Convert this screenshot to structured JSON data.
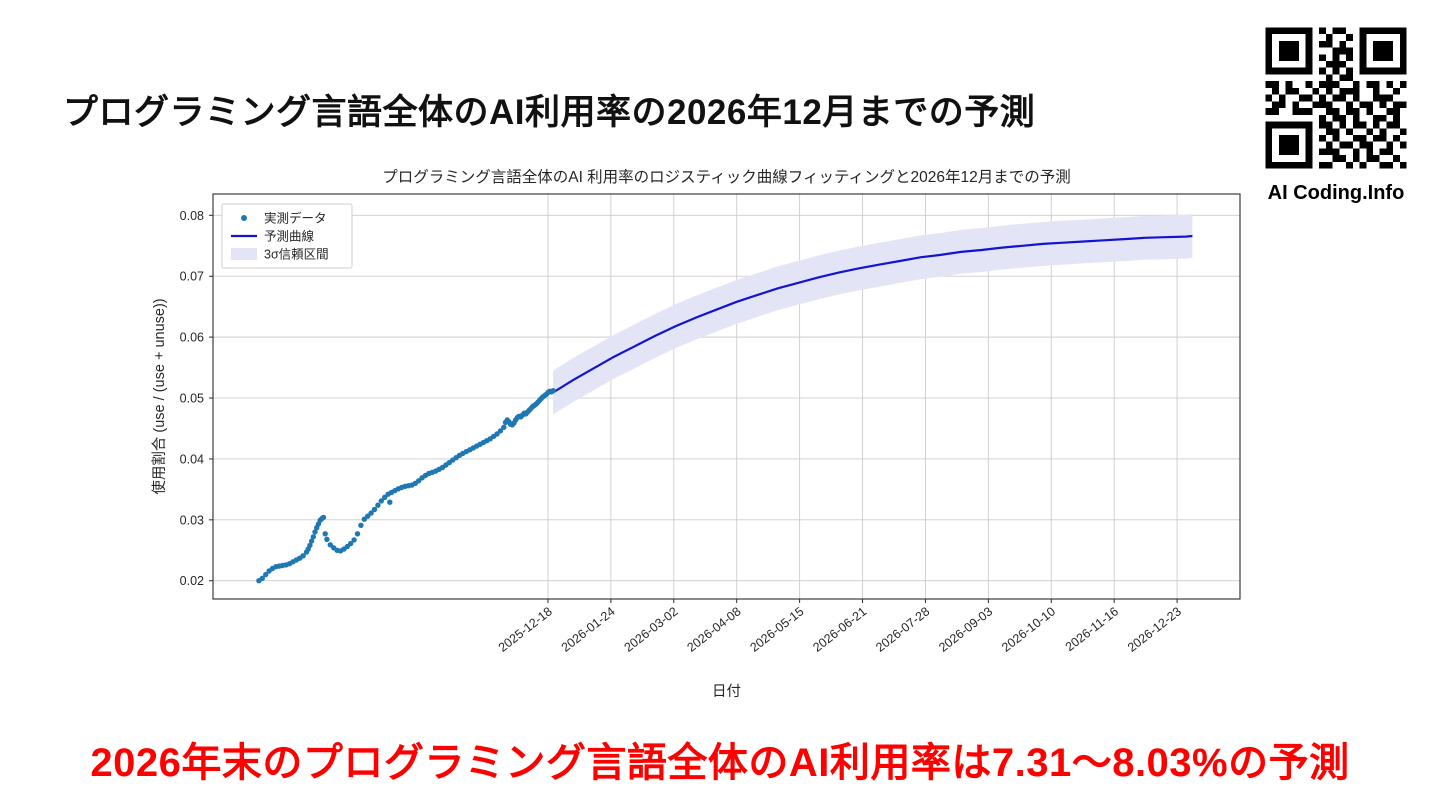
{
  "slide": {
    "title": "プログラミング言語全体のAI利用率の2026年12月までの予測"
  },
  "qr": {
    "caption": "AI Coding.Info",
    "pattern": [
      "111111101011001111111",
      "100000100100101000001",
      "101110101101001011101",
      "101110100011101011101",
      "101110101010101011101",
      "100000100111001000001",
      "111111101010101111111",
      "000000000101100000000",
      "110100101110010110101",
      "010110010101110010010",
      "101001101011010011100",
      "011010011100101101011",
      "110011100110110100110",
      "000000001011010011010",
      "111111101101011010110",
      "100000100110100101001",
      "101110101010011011010",
      "101110100101101100101",
      "101110101110010101100",
      "100000100011010110010",
      "111111101100101001101"
    ]
  },
  "footer": {
    "text": "2026年末のプログラミング言語全体のAI利用率は7.31～8.03%の予測"
  },
  "chart_data": {
    "type": "line",
    "title": "プログラミング言語全体のAI 利用率のロジスティック曲線フィッティングと2026年12月までの予測",
    "xlabel": "日付",
    "ylabel": "使用割合 (use / (use + unuse))",
    "x_unit": "days since 2025-07-01",
    "xlim": [
      -27,
      577
    ],
    "ylim": [
      0.017,
      0.0835
    ],
    "grid": true,
    "legend_position": "upper left",
    "colors": {
      "observed": "#1f77b4",
      "forecast": "#1313d2",
      "band": "#e4e4f7",
      "grid": "#cccccc",
      "spine": "#2b2b2b",
      "text": "#262626"
    },
    "y_ticks": [
      0.02,
      0.03,
      0.04,
      0.05,
      0.06,
      0.07,
      0.08
    ],
    "x_ticks": [
      {
        "day": 170,
        "label": "2025-12-18"
      },
      {
        "day": 207,
        "label": "2026-01-24"
      },
      {
        "day": 244,
        "label": "2026-03-02"
      },
      {
        "day": 281,
        "label": "2026-04-08"
      },
      {
        "day": 318,
        "label": "2026-05-15"
      },
      {
        "day": 355,
        "label": "2026-06-21"
      },
      {
        "day": 392,
        "label": "2026-07-28"
      },
      {
        "day": 429,
        "label": "2026-09-03"
      },
      {
        "day": 466,
        "label": "2026-10-10"
      },
      {
        "day": 503,
        "label": "2026-11-16"
      },
      {
        "day": 540,
        "label": "2026-12-23"
      }
    ],
    "series": [
      {
        "name": "実測データ",
        "kind": "scatter",
        "points": [
          [
            0,
            0.02
          ],
          [
            2,
            0.0204
          ],
          [
            4,
            0.021
          ],
          [
            6,
            0.0216
          ],
          [
            8,
            0.022
          ],
          [
            10,
            0.0223
          ],
          [
            12,
            0.0224
          ],
          [
            14,
            0.0225
          ],
          [
            16,
            0.0226
          ],
          [
            18,
            0.0228
          ],
          [
            20,
            0.0231
          ],
          [
            22,
            0.0234
          ],
          [
            24,
            0.0237
          ],
          [
            26,
            0.0241
          ],
          [
            28,
            0.0247
          ],
          [
            29,
            0.0252
          ],
          [
            30,
            0.0258
          ],
          [
            31,
            0.0265
          ],
          [
            32,
            0.0272
          ],
          [
            33,
            0.028
          ],
          [
            34,
            0.0287
          ],
          [
            35,
            0.0293
          ],
          [
            36,
            0.0299
          ],
          [
            37,
            0.0302
          ],
          [
            38,
            0.0304
          ],
          [
            39,
            0.0277
          ],
          [
            40,
            0.0268
          ],
          [
            42,
            0.0259
          ],
          [
            44,
            0.0254
          ],
          [
            46,
            0.025
          ],
          [
            48,
            0.0249
          ],
          [
            50,
            0.0252
          ],
          [
            52,
            0.0256
          ],
          [
            54,
            0.0261
          ],
          [
            56,
            0.0267
          ],
          [
            58,
            0.0277
          ],
          [
            60,
            0.0291
          ],
          [
            62,
            0.0301
          ],
          [
            64,
            0.0306
          ],
          [
            66,
            0.0311
          ],
          [
            68,
            0.0317
          ],
          [
            70,
            0.0324
          ],
          [
            72,
            0.0331
          ],
          [
            74,
            0.0337
          ],
          [
            76,
            0.0342
          ],
          [
            77,
            0.0329
          ],
          [
            78,
            0.0345
          ],
          [
            80,
            0.0348
          ],
          [
            82,
            0.0351
          ],
          [
            84,
            0.0353
          ],
          [
            86,
            0.0355
          ],
          [
            88,
            0.0356
          ],
          [
            90,
            0.0357
          ],
          [
            92,
            0.036
          ],
          [
            94,
            0.0364
          ],
          [
            96,
            0.0369
          ],
          [
            98,
            0.0373
          ],
          [
            100,
            0.0376
          ],
          [
            102,
            0.0378
          ],
          [
            104,
            0.038
          ],
          [
            106,
            0.0383
          ],
          [
            108,
            0.0386
          ],
          [
            110,
            0.039
          ],
          [
            112,
            0.0394
          ],
          [
            114,
            0.0398
          ],
          [
            116,
            0.0402
          ],
          [
            118,
            0.0406
          ],
          [
            120,
            0.0409
          ],
          [
            122,
            0.0412
          ],
          [
            124,
            0.0415
          ],
          [
            126,
            0.0418
          ],
          [
            128,
            0.0421
          ],
          [
            130,
            0.0424
          ],
          [
            132,
            0.0427
          ],
          [
            134,
            0.043
          ],
          [
            136,
            0.0433
          ],
          [
            138,
            0.0437
          ],
          [
            140,
            0.0441
          ],
          [
            142,
            0.0446
          ],
          [
            144,
            0.0452
          ],
          [
            145,
            0.046
          ],
          [
            146,
            0.0464
          ],
          [
            147,
            0.0461
          ],
          [
            148,
            0.0457
          ],
          [
            149,
            0.0456
          ],
          [
            150,
            0.0459
          ],
          [
            151,
            0.0464
          ],
          [
            152,
            0.0468
          ],
          [
            153,
            0.047
          ],
          [
            154,
            0.0469
          ],
          [
            155,
            0.0472
          ],
          [
            156,
            0.0475
          ],
          [
            157,
            0.0474
          ],
          [
            158,
            0.0477
          ],
          [
            159,
            0.048
          ],
          [
            160,
            0.0483
          ],
          [
            161,
            0.0486
          ],
          [
            162,
            0.0488
          ],
          [
            163,
            0.049
          ],
          [
            164,
            0.0493
          ],
          [
            165,
            0.0496
          ],
          [
            166,
            0.0499
          ],
          [
            167,
            0.0502
          ],
          [
            168,
            0.0504
          ],
          [
            169,
            0.0506
          ],
          [
            170,
            0.0509
          ],
          [
            171,
            0.0511
          ],
          [
            172,
            0.051
          ],
          [
            173,
            0.0512
          ]
        ]
      },
      {
        "name": "予測曲線",
        "kind": "line",
        "points": [
          [
            173,
            0.0509
          ],
          [
            185,
            0.053
          ],
          [
            197,
            0.0549
          ],
          [
            209,
            0.0568
          ],
          [
            221,
            0.0585
          ],
          [
            233,
            0.0602
          ],
          [
            245,
            0.0618
          ],
          [
            257,
            0.0632
          ],
          [
            269,
            0.0645
          ],
          [
            281,
            0.0658
          ],
          [
            293,
            0.0669
          ],
          [
            305,
            0.068
          ],
          [
            317,
            0.0689
          ],
          [
            329,
            0.0698
          ],
          [
            341,
            0.0706
          ],
          [
            353,
            0.0713
          ],
          [
            365,
            0.0719
          ],
          [
            377,
            0.0725
          ],
          [
            389,
            0.0731
          ],
          [
            401,
            0.0735
          ],
          [
            413,
            0.074
          ],
          [
            425,
            0.0743
          ],
          [
            437,
            0.0747
          ],
          [
            449,
            0.075
          ],
          [
            461,
            0.0753
          ],
          [
            473,
            0.0755
          ],
          [
            485,
            0.0757
          ],
          [
            497,
            0.0759
          ],
          [
            509,
            0.0761
          ],
          [
            521,
            0.0763
          ],
          [
            533,
            0.0764
          ],
          [
            545,
            0.0765
          ],
          [
            549,
            0.0766
          ]
        ]
      },
      {
        "name": "3σ信頼区間",
        "kind": "band",
        "halfwidth": 0.0036,
        "end_interval_pct": [
          7.31,
          8.03
        ]
      }
    ]
  }
}
